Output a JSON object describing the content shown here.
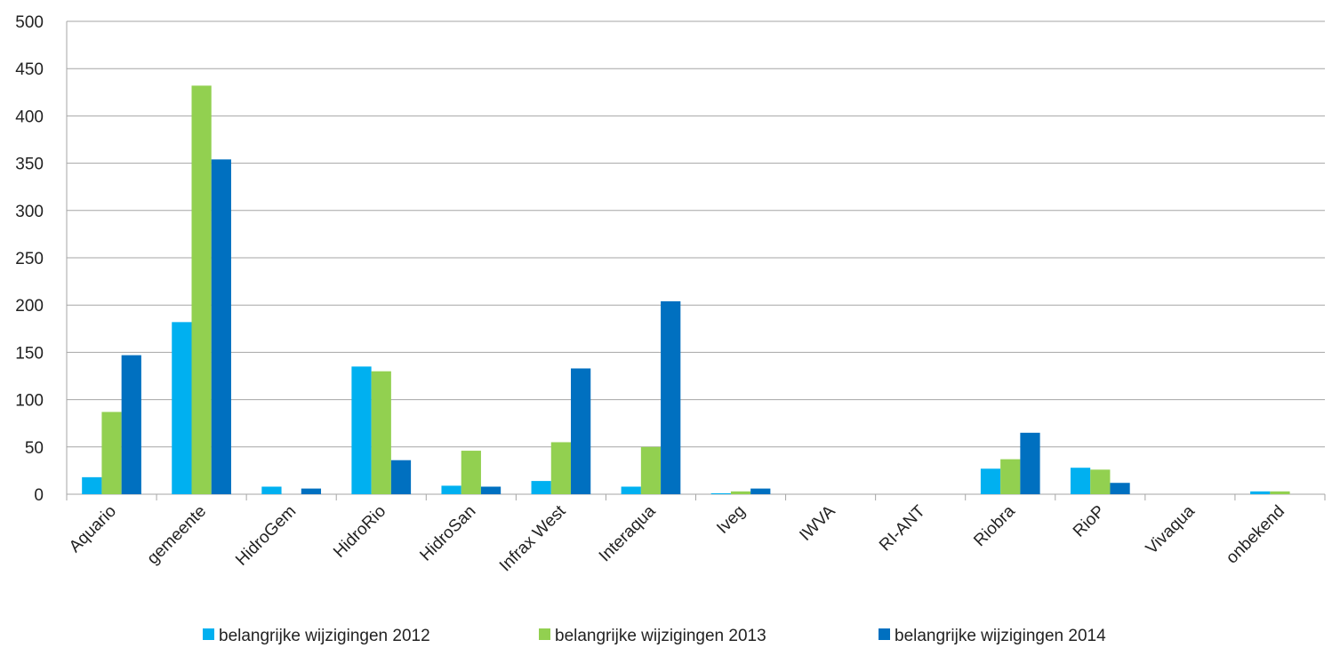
{
  "chart_data": {
    "type": "bar",
    "categories": [
      "Aquario",
      "gemeente",
      "HidroGem",
      "HidroRio",
      "HidroSan",
      "Infrax West",
      "Interaqua",
      "Iveg",
      "IWVA",
      "RI-ANT",
      "Riobra",
      "RioP",
      "Vivaqua",
      "onbekend"
    ],
    "series": [
      {
        "name": "belangrijke wijzigingen 2012",
        "color": "#00b0f0",
        "values": [
          18,
          182,
          8,
          135,
          9,
          14,
          8,
          1,
          0,
          0,
          27,
          28,
          0,
          3
        ]
      },
      {
        "name": "belangrijke wijzigingen 2013",
        "color": "#92d050",
        "values": [
          87,
          432,
          0,
          130,
          46,
          55,
          50,
          3,
          0,
          0,
          37,
          26,
          0,
          3
        ]
      },
      {
        "name": "belangrijke wijzigingen 2014",
        "color": "#0070c0",
        "values": [
          147,
          354,
          6,
          36,
          8,
          133,
          204,
          6,
          0,
          0,
          65,
          12,
          0,
          0
        ]
      }
    ],
    "ylim": [
      0,
      500
    ],
    "yticks": [
      0,
      50,
      100,
      150,
      200,
      250,
      300,
      350,
      400,
      450,
      500
    ],
    "grid": true,
    "legend": "bottom"
  }
}
